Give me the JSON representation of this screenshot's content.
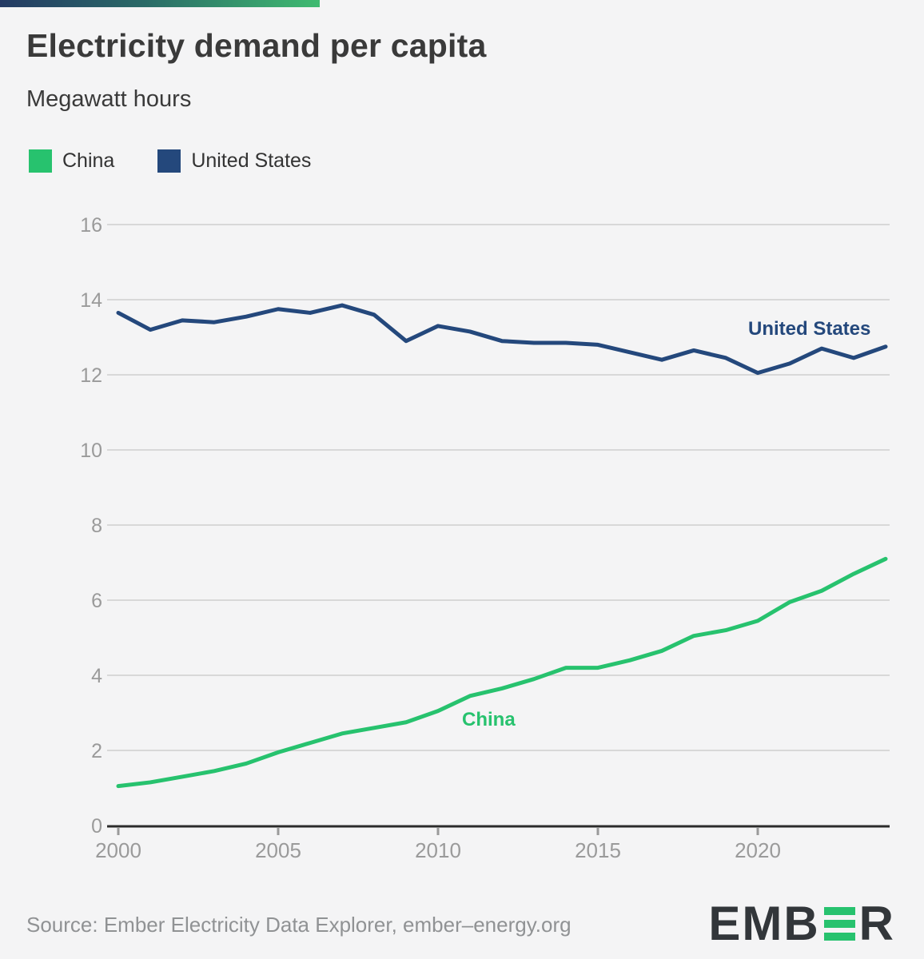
{
  "header": {
    "title": "Electricity demand per capita",
    "subtitle": "Megawatt hours"
  },
  "legend": [
    {
      "label": "China",
      "color": "#27c26e"
    },
    {
      "label": "United States",
      "color": "#24487c"
    }
  ],
  "chart_data": {
    "type": "line",
    "x": [
      2000,
      2001,
      2002,
      2003,
      2004,
      2005,
      2006,
      2007,
      2008,
      2009,
      2010,
      2011,
      2012,
      2013,
      2014,
      2015,
      2016,
      2017,
      2018,
      2019,
      2020,
      2021,
      2022,
      2023,
      2024
    ],
    "series": [
      {
        "name": "China",
        "color": "#27c26e",
        "values": [
          1.05,
          1.15,
          1.3,
          1.45,
          1.65,
          1.95,
          2.2,
          2.45,
          2.6,
          2.75,
          3.05,
          3.45,
          3.65,
          3.9,
          4.2,
          4.2,
          4.4,
          4.65,
          5.05,
          5.2,
          5.45,
          5.95,
          6.25,
          6.7,
          7.1
        ]
      },
      {
        "name": "United States",
        "color": "#24487c",
        "values": [
          13.65,
          13.2,
          13.45,
          13.4,
          13.55,
          13.75,
          13.65,
          13.85,
          13.6,
          12.9,
          13.3,
          13.15,
          12.9,
          12.85,
          12.85,
          12.8,
          12.6,
          12.4,
          12.65,
          12.45,
          12.05,
          12.3,
          12.7,
          12.45,
          12.75
        ]
      }
    ],
    "title": "Electricity demand per capita",
    "ylabel": "Megawatt hours",
    "xlabel": "",
    "ylim": [
      0,
      16
    ],
    "yticks": [
      0,
      2,
      4,
      6,
      8,
      10,
      12,
      14,
      16
    ],
    "xticks": [
      2000,
      2005,
      2010,
      2015,
      2020
    ],
    "grid": true,
    "legend_position": "top-left",
    "annotations": [
      {
        "text": "China",
        "x": 2010.75,
        "y": 2.66,
        "series": "China"
      },
      {
        "text": "United States",
        "x": 2019.7,
        "y": 13.06,
        "series": "United States"
      }
    ],
    "colors": {
      "gridline": "#d8d8d8",
      "axis": "#2b2b2b",
      "tick_label": "#9a9a9a"
    }
  },
  "footer": {
    "source": "Source: Ember Electricity Data Explorer, ember–energy.org",
    "logo_left": "EMB",
    "logo_right": "R"
  }
}
